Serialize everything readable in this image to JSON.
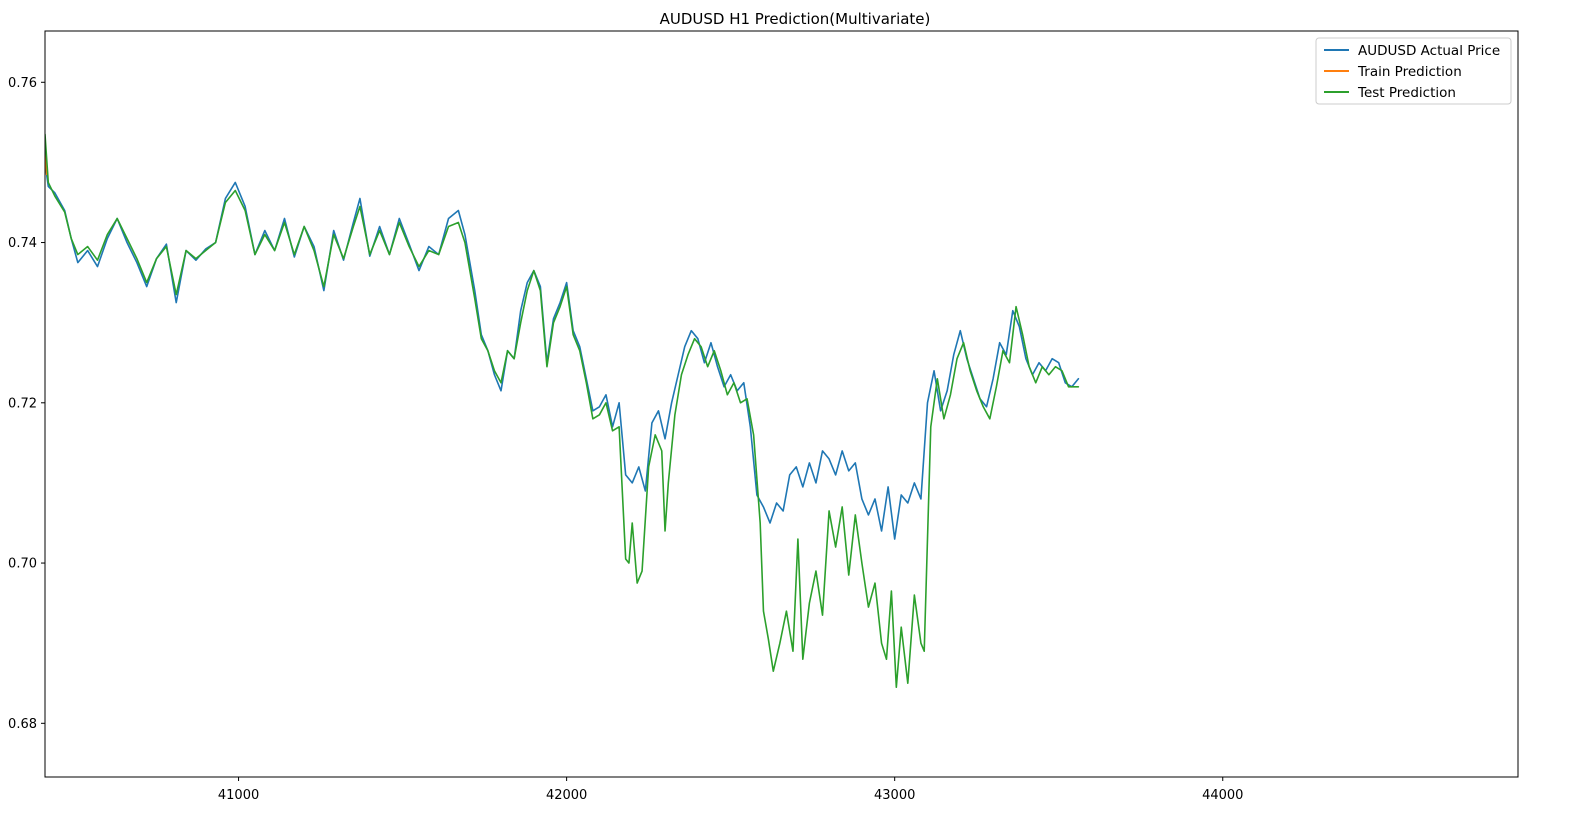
{
  "chart_data": {
    "type": "line",
    "title": "AUDUSD H1 Prediction(Multivariate)",
    "xlabel": "",
    "ylabel": "",
    "xlim": [
      40410,
      44900
    ],
    "ylim": [
      0.6733,
      0.7664
    ],
    "x_ticks": [
      41000,
      42000,
      43000,
      44000
    ],
    "x_tick_labels": [
      "41000",
      "42000",
      "43000",
      "44000"
    ],
    "y_ticks": [
      0.68,
      0.7,
      0.72,
      0.74,
      0.76
    ],
    "y_tick_labels": [
      "0.68",
      "0.70",
      "0.72",
      "0.74",
      "0.76"
    ],
    "grid": false,
    "legend_position": "top-right",
    "series": [
      {
        "name": "AUDUSD Actual Price",
        "color": "#1f77b4",
        "points": [
          [
            40410,
            0.75
          ],
          [
            40420,
            0.747
          ],
          [
            40440,
            0.7462
          ],
          [
            40470,
            0.744
          ],
          [
            40490,
            0.7405
          ],
          [
            40510,
            0.7375
          ],
          [
            40540,
            0.739
          ],
          [
            40570,
            0.737
          ],
          [
            40600,
            0.7405
          ],
          [
            40630,
            0.743
          ],
          [
            40660,
            0.74
          ],
          [
            40690,
            0.7375
          ],
          [
            40720,
            0.7345
          ],
          [
            40750,
            0.738
          ],
          [
            40780,
            0.7398
          ],
          [
            40810,
            0.7325
          ],
          [
            40840,
            0.739
          ],
          [
            40870,
            0.7378
          ],
          [
            40900,
            0.7392
          ],
          [
            40930,
            0.74
          ],
          [
            40960,
            0.7455
          ],
          [
            40990,
            0.7475
          ],
          [
            41020,
            0.7445
          ],
          [
            41050,
            0.7385
          ],
          [
            41080,
            0.7415
          ],
          [
            41110,
            0.739
          ],
          [
            41140,
            0.743
          ],
          [
            41170,
            0.7382
          ],
          [
            41200,
            0.742
          ],
          [
            41230,
            0.7395
          ],
          [
            41260,
            0.734
          ],
          [
            41290,
            0.7415
          ],
          [
            41320,
            0.7378
          ],
          [
            41350,
            0.7425
          ],
          [
            41370,
            0.7455
          ],
          [
            41400,
            0.7383
          ],
          [
            41430,
            0.742
          ],
          [
            41460,
            0.7385
          ],
          [
            41490,
            0.743
          ],
          [
            41520,
            0.7398
          ],
          [
            41550,
            0.7365
          ],
          [
            41580,
            0.7395
          ],
          [
            41610,
            0.7385
          ],
          [
            41640,
            0.743
          ],
          [
            41670,
            0.744
          ],
          [
            41690,
            0.741
          ],
          [
            41720,
            0.734
          ],
          [
            41740,
            0.7285
          ],
          [
            41760,
            0.7265
          ],
          [
            41780,
            0.7235
          ],
          [
            41800,
            0.7215
          ],
          [
            41820,
            0.7265
          ],
          [
            41840,
            0.7255
          ],
          [
            41860,
            0.7315
          ],
          [
            41880,
            0.735
          ],
          [
            41900,
            0.7365
          ],
          [
            41920,
            0.7345
          ],
          [
            41940,
            0.725
          ],
          [
            41960,
            0.7305
          ],
          [
            41980,
            0.7325
          ],
          [
            42000,
            0.735
          ],
          [
            42020,
            0.729
          ],
          [
            42040,
            0.727
          ],
          [
            42060,
            0.723
          ],
          [
            42080,
            0.719
          ],
          [
            42100,
            0.7195
          ],
          [
            42120,
            0.721
          ],
          [
            42140,
            0.717
          ],
          [
            42160,
            0.72
          ],
          [
            42180,
            0.711
          ],
          [
            42200,
            0.71
          ],
          [
            42220,
            0.712
          ],
          [
            42240,
            0.709
          ],
          [
            42260,
            0.7175
          ],
          [
            42280,
            0.719
          ],
          [
            42300,
            0.7155
          ],
          [
            42320,
            0.72
          ],
          [
            42340,
            0.7235
          ],
          [
            42360,
            0.727
          ],
          [
            42380,
            0.729
          ],
          [
            42400,
            0.728
          ],
          [
            42420,
            0.725
          ],
          [
            42440,
            0.7275
          ],
          [
            42460,
            0.7245
          ],
          [
            42480,
            0.722
          ],
          [
            42500,
            0.7235
          ],
          [
            42520,
            0.7215
          ],
          [
            42540,
            0.7225
          ],
          [
            42560,
            0.717
          ],
          [
            42580,
            0.7085
          ],
          [
            42600,
            0.707
          ],
          [
            42620,
            0.705
          ],
          [
            42640,
            0.7075
          ],
          [
            42660,
            0.7065
          ],
          [
            42680,
            0.711
          ],
          [
            42700,
            0.712
          ],
          [
            42720,
            0.7095
          ],
          [
            42740,
            0.7125
          ],
          [
            42760,
            0.71
          ],
          [
            42780,
            0.714
          ],
          [
            42800,
            0.713
          ],
          [
            42820,
            0.711
          ],
          [
            42840,
            0.714
          ],
          [
            42860,
            0.7115
          ],
          [
            42880,
            0.7125
          ],
          [
            42900,
            0.708
          ],
          [
            42920,
            0.706
          ],
          [
            42940,
            0.708
          ],
          [
            42960,
            0.704
          ],
          [
            42980,
            0.7095
          ],
          [
            43000,
            0.703
          ],
          [
            43020,
            0.7085
          ],
          [
            43040,
            0.7075
          ],
          [
            43060,
            0.71
          ],
          [
            43080,
            0.708
          ],
          [
            43100,
            0.72
          ],
          [
            43120,
            0.724
          ],
          [
            43140,
            0.719
          ],
          [
            43160,
            0.7215
          ],
          [
            43180,
            0.726
          ],
          [
            43200,
            0.729
          ],
          [
            43220,
            0.7255
          ],
          [
            43240,
            0.723
          ],
          [
            43260,
            0.7205
          ],
          [
            43280,
            0.7195
          ],
          [
            43300,
            0.723
          ],
          [
            43320,
            0.7275
          ],
          [
            43340,
            0.726
          ],
          [
            43360,
            0.7315
          ],
          [
            43380,
            0.7295
          ],
          [
            43400,
            0.7255
          ],
          [
            43420,
            0.7235
          ],
          [
            43440,
            0.725
          ],
          [
            43460,
            0.724
          ],
          [
            43480,
            0.7255
          ],
          [
            43500,
            0.725
          ],
          [
            43520,
            0.7225
          ],
          [
            43540,
            0.722
          ],
          [
            43560,
            0.723
          ]
        ]
      },
      {
        "name": "Train Prediction",
        "color": "#ff7f0e",
        "points": [
          [
            40410,
            0.753
          ],
          [
            40415,
            0.7485
          ]
        ]
      },
      {
        "name": "Test Prediction",
        "color": "#2ca02c",
        "points": [
          [
            40410,
            0.7535
          ],
          [
            40420,
            0.7475
          ],
          [
            40440,
            0.7458
          ],
          [
            40470,
            0.7438
          ],
          [
            40490,
            0.7405
          ],
          [
            40510,
            0.7385
          ],
          [
            40540,
            0.7395
          ],
          [
            40570,
            0.7378
          ],
          [
            40600,
            0.741
          ],
          [
            40630,
            0.743
          ],
          [
            40660,
            0.7405
          ],
          [
            40690,
            0.738
          ],
          [
            40720,
            0.735
          ],
          [
            40750,
            0.738
          ],
          [
            40780,
            0.7395
          ],
          [
            40810,
            0.7335
          ],
          [
            40840,
            0.739
          ],
          [
            40870,
            0.738
          ],
          [
            40900,
            0.739
          ],
          [
            40930,
            0.74
          ],
          [
            40960,
            0.745
          ],
          [
            40990,
            0.7465
          ],
          [
            41020,
            0.744
          ],
          [
            41050,
            0.7385
          ],
          [
            41080,
            0.741
          ],
          [
            41110,
            0.739
          ],
          [
            41140,
            0.7425
          ],
          [
            41170,
            0.7385
          ],
          [
            41200,
            0.742
          ],
          [
            41230,
            0.739
          ],
          [
            41260,
            0.7345
          ],
          [
            41290,
            0.741
          ],
          [
            41320,
            0.738
          ],
          [
            41350,
            0.742
          ],
          [
            41370,
            0.7445
          ],
          [
            41400,
            0.7385
          ],
          [
            41430,
            0.7415
          ],
          [
            41460,
            0.7385
          ],
          [
            41490,
            0.7425
          ],
          [
            41520,
            0.7395
          ],
          [
            41550,
            0.737
          ],
          [
            41580,
            0.739
          ],
          [
            41610,
            0.7385
          ],
          [
            41640,
            0.742
          ],
          [
            41670,
            0.7425
          ],
          [
            41690,
            0.74
          ],
          [
            41720,
            0.733
          ],
          [
            41740,
            0.728
          ],
          [
            41760,
            0.7265
          ],
          [
            41780,
            0.724
          ],
          [
            41800,
            0.7225
          ],
          [
            41820,
            0.7265
          ],
          [
            41840,
            0.7255
          ],
          [
            41860,
            0.73
          ],
          [
            41880,
            0.734
          ],
          [
            41900,
            0.7365
          ],
          [
            41920,
            0.734
          ],
          [
            41940,
            0.7245
          ],
          [
            41960,
            0.73
          ],
          [
            41980,
            0.732
          ],
          [
            42000,
            0.7345
          ],
          [
            42020,
            0.7285
          ],
          [
            42040,
            0.7265
          ],
          [
            42060,
            0.7225
          ],
          [
            42080,
            0.718
          ],
          [
            42100,
            0.7185
          ],
          [
            42120,
            0.72
          ],
          [
            42140,
            0.7165
          ],
          [
            42160,
            0.717
          ],
          [
            42180,
            0.7005
          ],
          [
            42190,
            0.7
          ],
          [
            42200,
            0.705
          ],
          [
            42215,
            0.6975
          ],
          [
            42230,
            0.699
          ],
          [
            42250,
            0.712
          ],
          [
            42270,
            0.716
          ],
          [
            42290,
            0.714
          ],
          [
            42300,
            0.704
          ],
          [
            42310,
            0.71
          ],
          [
            42330,
            0.7185
          ],
          [
            42350,
            0.7235
          ],
          [
            42370,
            0.726
          ],
          [
            42390,
            0.728
          ],
          [
            42410,
            0.727
          ],
          [
            42430,
            0.7245
          ],
          [
            42450,
            0.7265
          ],
          [
            42470,
            0.724
          ],
          [
            42490,
            0.721
          ],
          [
            42510,
            0.7225
          ],
          [
            42530,
            0.72
          ],
          [
            42550,
            0.7205
          ],
          [
            42570,
            0.716
          ],
          [
            42590,
            0.705
          ],
          [
            42600,
            0.694
          ],
          [
            42615,
            0.6905
          ],
          [
            42630,
            0.6865
          ],
          [
            42650,
            0.69
          ],
          [
            42670,
            0.694
          ],
          [
            42690,
            0.689
          ],
          [
            42705,
            0.703
          ],
          [
            42720,
            0.688
          ],
          [
            42740,
            0.695
          ],
          [
            42760,
            0.699
          ],
          [
            42780,
            0.6935
          ],
          [
            42800,
            0.7065
          ],
          [
            42820,
            0.702
          ],
          [
            42840,
            0.707
          ],
          [
            42860,
            0.6985
          ],
          [
            42880,
            0.706
          ],
          [
            42900,
            0.7
          ],
          [
            42920,
            0.6945
          ],
          [
            42940,
            0.6975
          ],
          [
            42960,
            0.69
          ],
          [
            42975,
            0.688
          ],
          [
            42990,
            0.6965
          ],
          [
            43005,
            0.6845
          ],
          [
            43020,
            0.692
          ],
          [
            43040,
            0.685
          ],
          [
            43060,
            0.696
          ],
          [
            43080,
            0.69
          ],
          [
            43090,
            0.689
          ],
          [
            43110,
            0.717
          ],
          [
            43130,
            0.723
          ],
          [
            43150,
            0.718
          ],
          [
            43170,
            0.721
          ],
          [
            43190,
            0.7255
          ],
          [
            43210,
            0.7275
          ],
          [
            43230,
            0.724
          ],
          [
            43250,
            0.7215
          ],
          [
            43270,
            0.7195
          ],
          [
            43290,
            0.718
          ],
          [
            43310,
            0.722
          ],
          [
            43330,
            0.7265
          ],
          [
            43350,
            0.725
          ],
          [
            43370,
            0.732
          ],
          [
            43390,
            0.7285
          ],
          [
            43410,
            0.7245
          ],
          [
            43430,
            0.7225
          ],
          [
            43450,
            0.7245
          ],
          [
            43470,
            0.7235
          ],
          [
            43490,
            0.7245
          ],
          [
            43510,
            0.724
          ],
          [
            43530,
            0.722
          ],
          [
            43560,
            0.722
          ]
        ]
      }
    ]
  }
}
